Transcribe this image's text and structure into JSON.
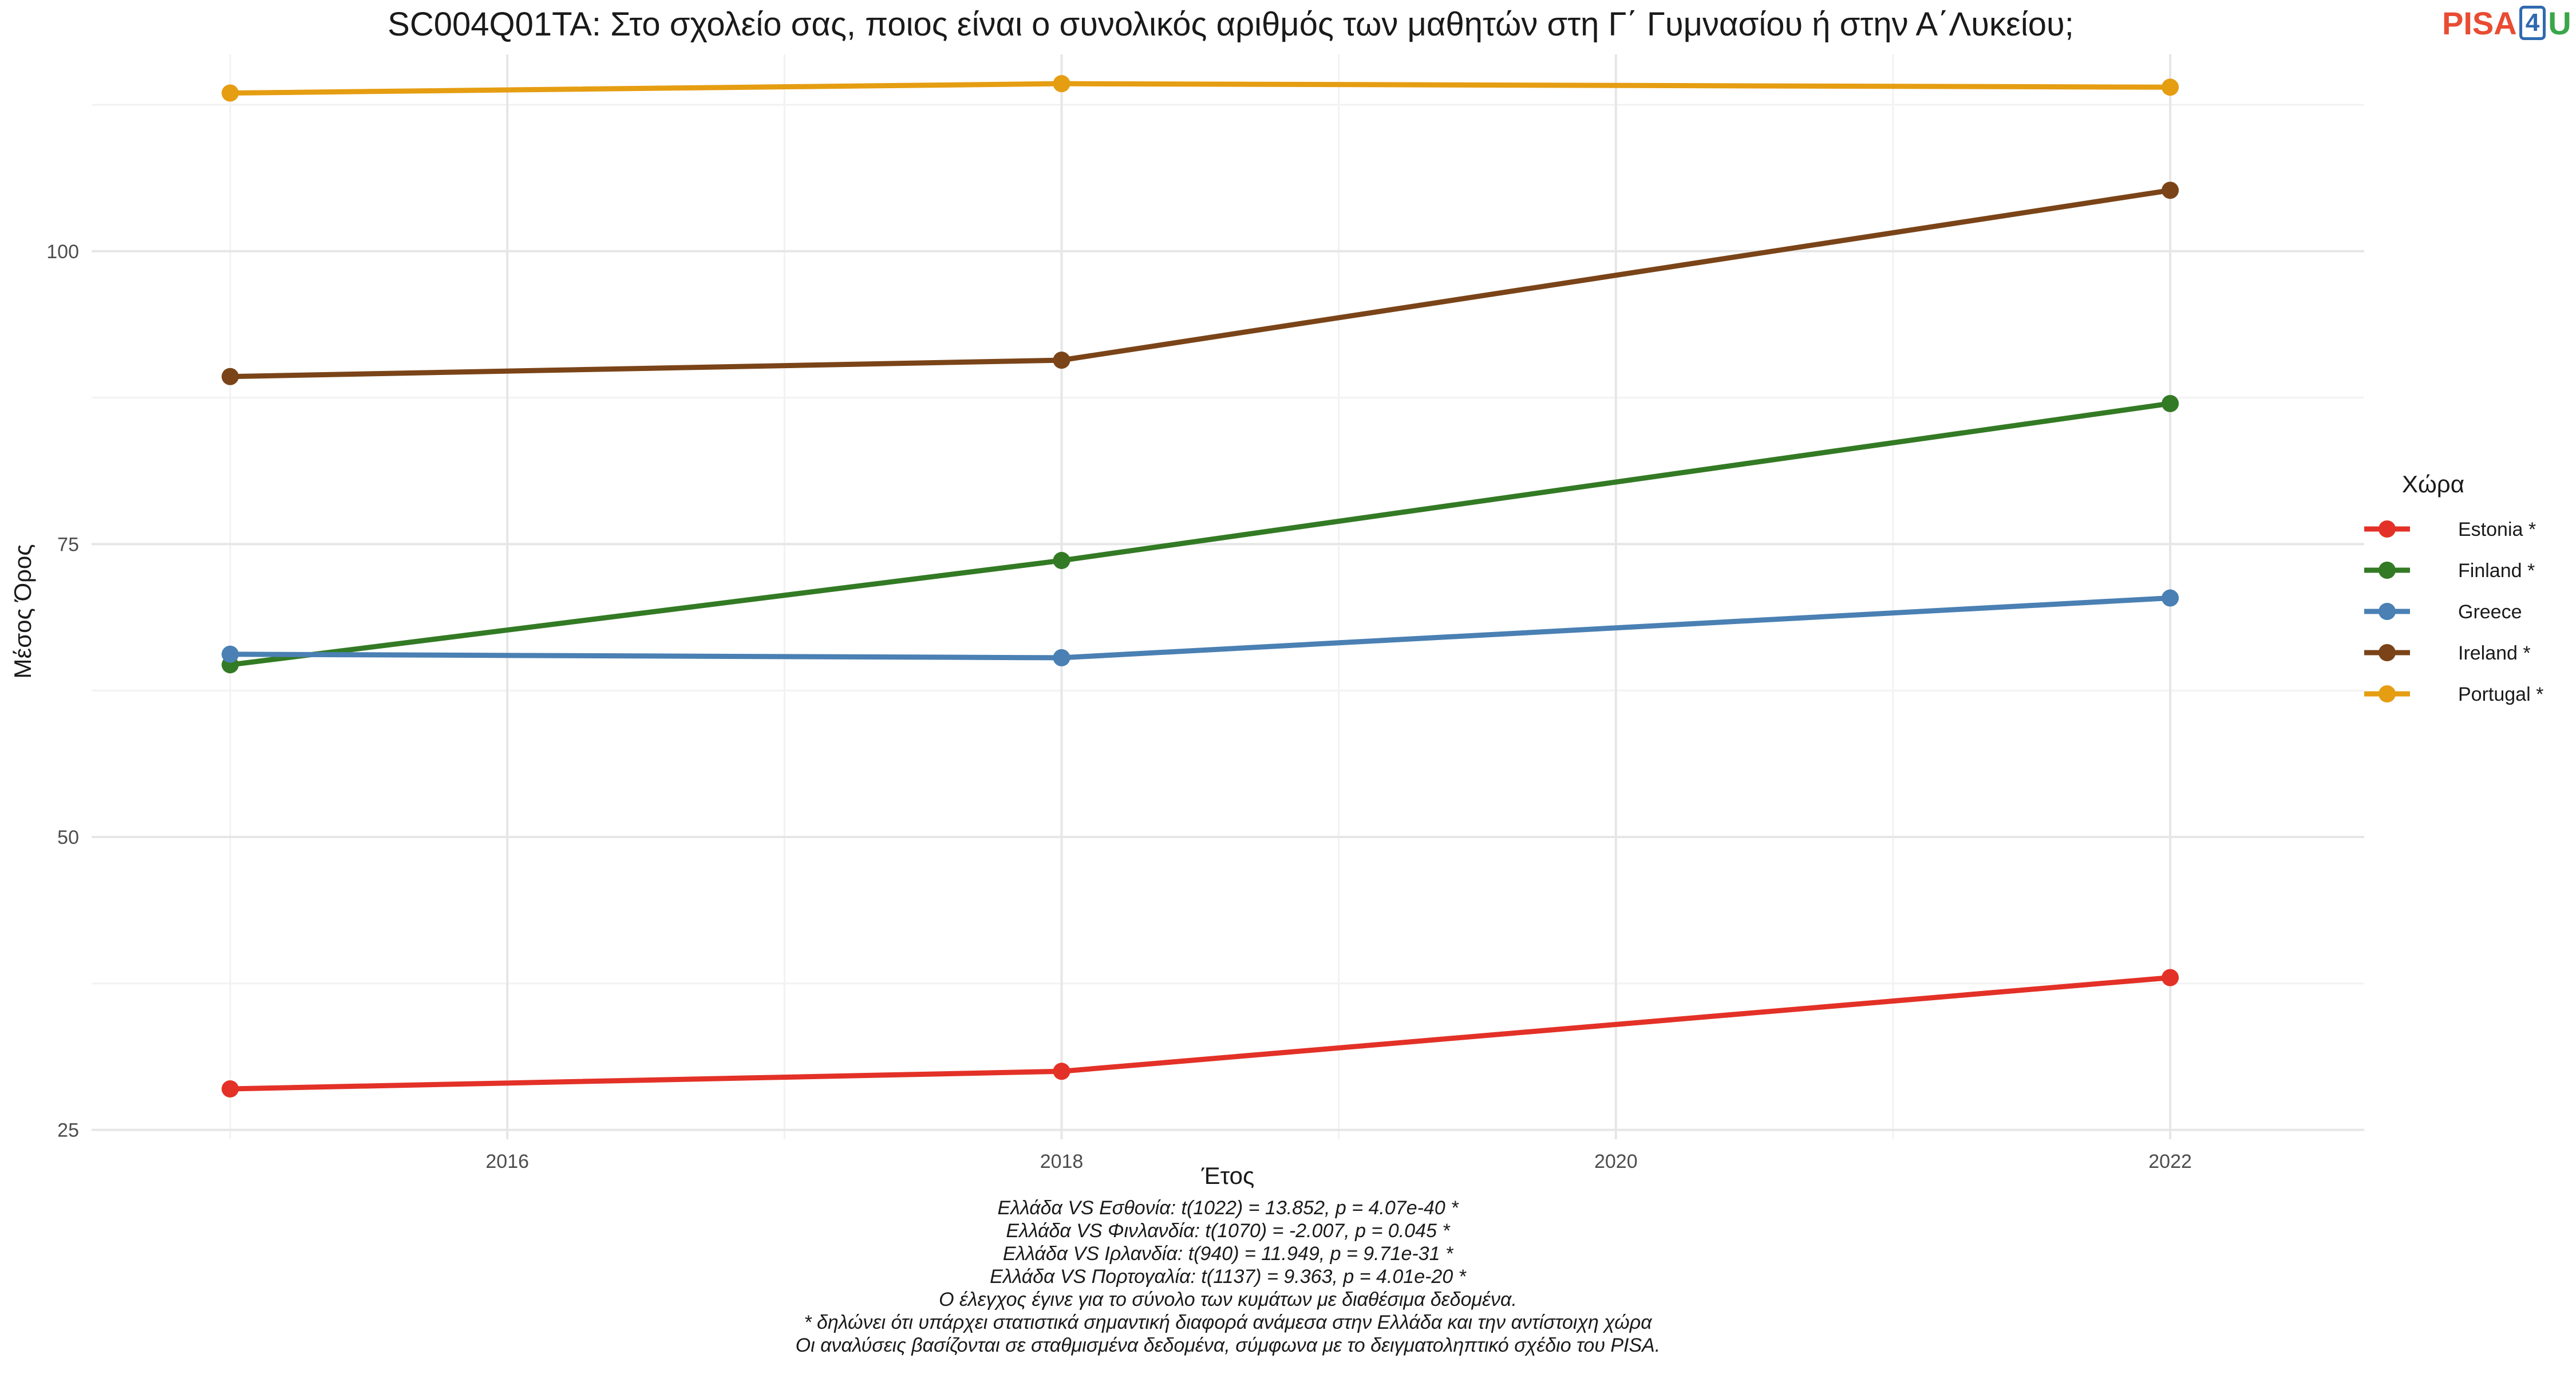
{
  "title": "SC004Q01TA: Στο σχολείο σας, ποιος είναι ο συνολικός αριθμός των μαθητών στη Γ΄ Γυμνασίου ή στην Α΄Λυκείου;",
  "logo": {
    "part1": "PISA",
    "part2": "4",
    "part3": "U"
  },
  "chart_data": {
    "type": "line",
    "title": "SC004Q01TA: Στο σχολείο σας, ποιος είναι ο συνολικός αριθμός των μαθητών στη Γ΄ Γυμνασίου ή στην Α΄Λυκείου;",
    "xlabel": "Έτος",
    "ylabel": "Μέσος Όρος",
    "x": [
      2015,
      2018,
      2022
    ],
    "xlim": [
      2014.5,
      2022.7
    ],
    "ylim": [
      24.2,
      116.8
    ],
    "xticks": [
      2016,
      2018,
      2020,
      2022
    ],
    "yticks": [
      25,
      50,
      75,
      100
    ],
    "grid": true,
    "legend_title": "Χώρα",
    "legend_position": "right",
    "series": [
      {
        "name": "Estonia *",
        "color": "#e33127",
        "values": [
          28.5,
          30.0,
          38.0
        ]
      },
      {
        "name": "Finland *",
        "color": "#337a24",
        "values": [
          64.7,
          73.6,
          87.0
        ]
      },
      {
        "name": "Greece",
        "color": "#4a80b3",
        "values": [
          65.6,
          65.3,
          70.4
        ]
      },
      {
        "name": "Ireland *",
        "color": "#7a4418",
        "values": [
          89.3,
          90.7,
          105.2
        ]
      },
      {
        "name": "Portugal *",
        "color": "#e59d12",
        "values": [
          113.5,
          114.3,
          114.0
        ]
      }
    ]
  },
  "notes": [
    "Ελλάδα VS Εσθονία: t(1022) = 13.852, p = 4.07e-40 *",
    "Ελλάδα VS Φινλανδία: t(1070) = -2.007, p = 0.045 *",
    "Ελλάδα VS Ιρλανδία: t(940) = 11.949, p = 9.71e-31 *",
    "Ελλάδα VS Πορτογαλία: t(1137) = 9.363, p = 4.01e-20 *",
    "Ο έλεγχος έγινε για το σύνολο των κυμάτων με διαθέσιμα δεδομένα.",
    "* δηλώνει ότι υπάρχει στατιστικά σημαντική διαφορά ανάμεσα στην Ελλάδα και την αντίστοιχη χώρα",
    "Οι αναλύσεις βασίζονται σε σταθμισμένα δεδομένα, σύμφωνα με το δειγματοληπτικό σχέδιο του PISA."
  ]
}
